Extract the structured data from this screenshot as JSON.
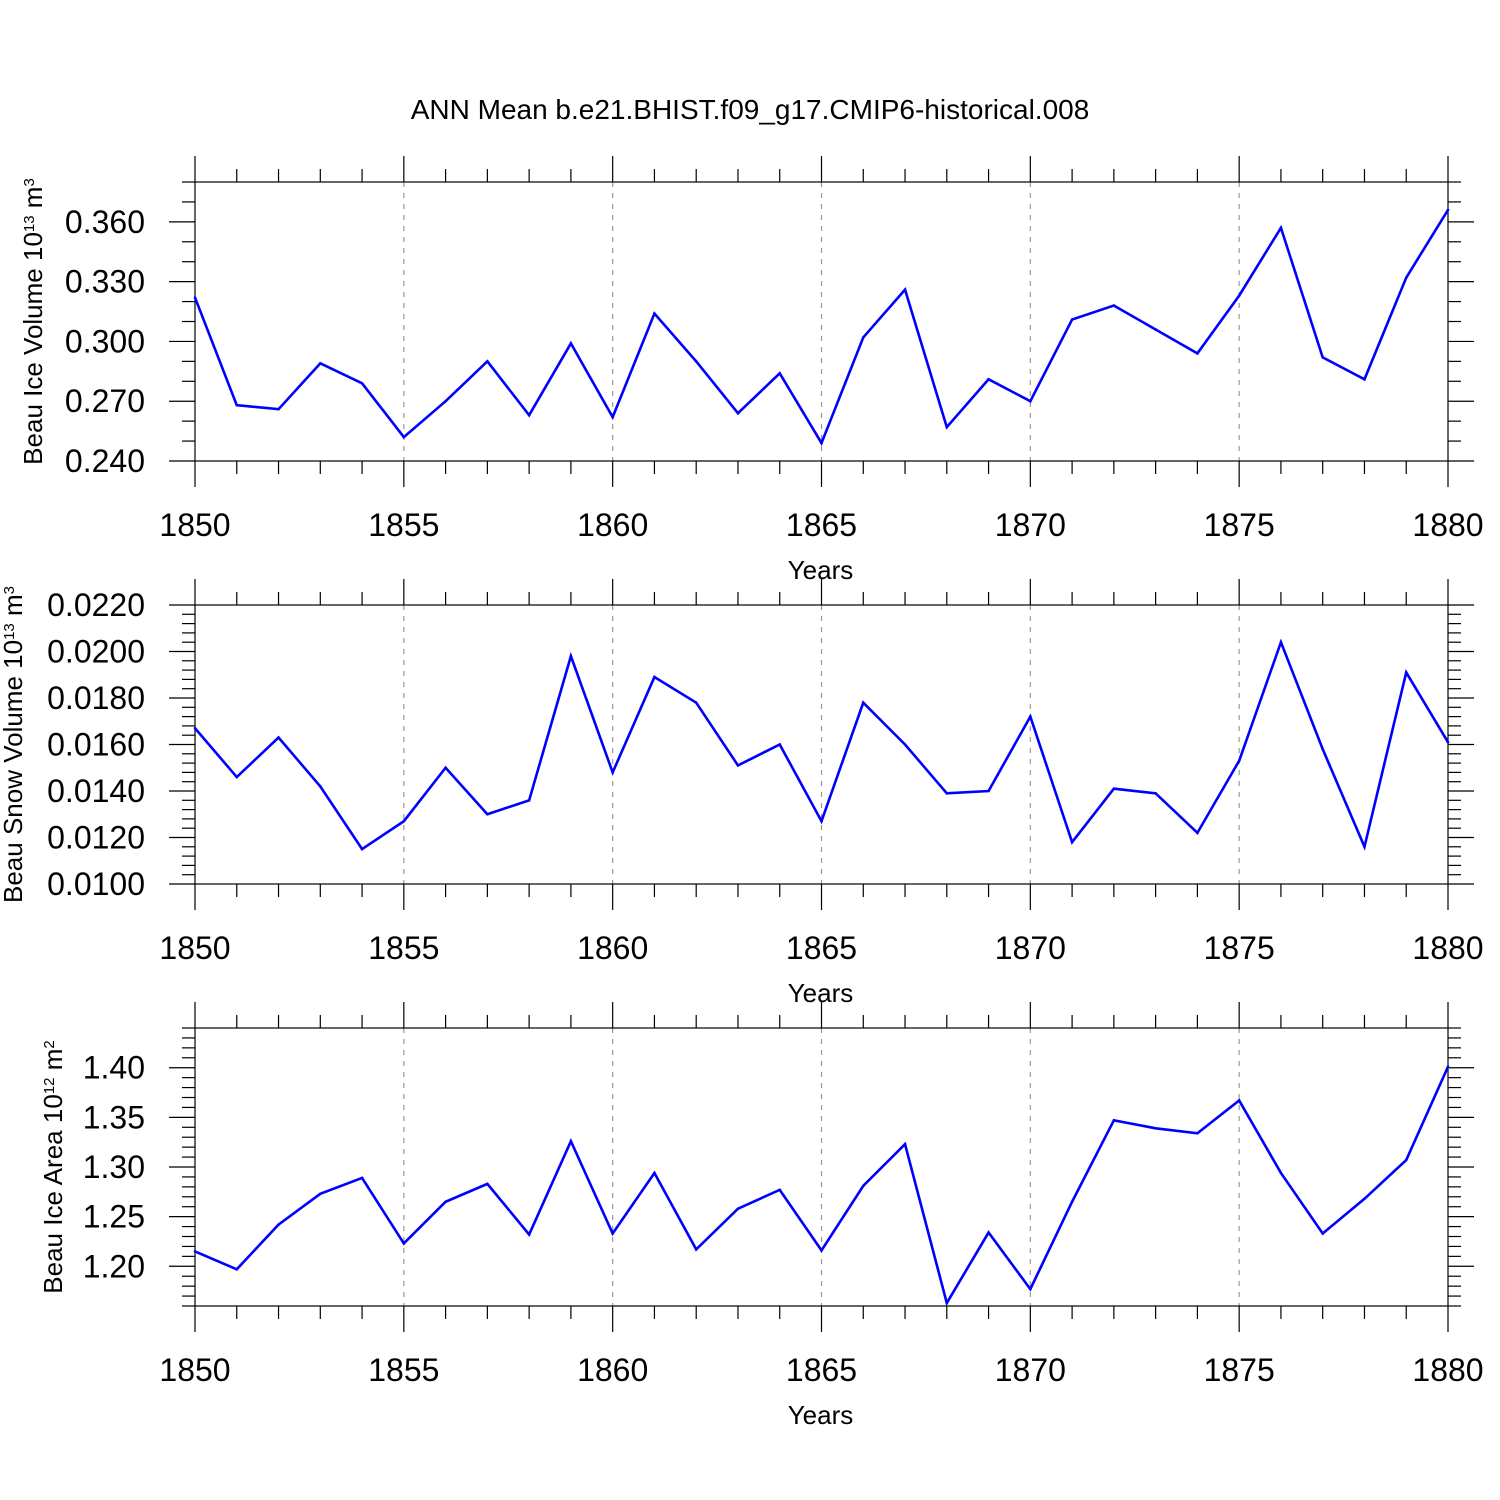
{
  "title": "ANN Mean b.e21.BHIST.f09_g17.CMIP6-historical.008",
  "colors": {
    "line": "#0000ff",
    "axis": "#000000",
    "grid": "#999999"
  },
  "chart_data": [
    {
      "type": "line",
      "title": "ANN Mean b.e21.BHIST.f09_g17.CMIP6-historical.008",
      "xlabel": "Years",
      "ylabel": {
        "prefix": "Beau Ice Volume 10",
        "exponent": "13",
        "unit": "m",
        "unit_exp": "3"
      },
      "xlim": [
        1850,
        1880
      ],
      "ylim": [
        0.24,
        0.38
      ],
      "xticks": [
        1850,
        1855,
        1860,
        1865,
        1870,
        1875,
        1880
      ],
      "yticks": [
        0.24,
        0.27,
        0.3,
        0.33,
        0.36
      ],
      "ytick_labels": [
        "0.240",
        "0.270",
        "0.300",
        "0.330",
        "0.360"
      ],
      "ytick_minor": 0.01,
      "grid": "vertical dashed at major x ticks",
      "series": [
        {
          "name": "Beau Ice Volume",
          "x": [
            1850,
            1851,
            1852,
            1853,
            1854,
            1855,
            1856,
            1857,
            1858,
            1859,
            1860,
            1861,
            1862,
            1863,
            1864,
            1865,
            1866,
            1867,
            1868,
            1869,
            1870,
            1871,
            1872,
            1873,
            1874,
            1875,
            1876,
            1877,
            1878,
            1879,
            1880
          ],
          "values": [
            0.322,
            0.268,
            0.266,
            0.289,
            0.279,
            0.252,
            0.27,
            0.29,
            0.263,
            0.299,
            0.262,
            0.314,
            0.29,
            0.264,
            0.284,
            0.249,
            0.302,
            0.326,
            0.257,
            0.281,
            0.27,
            0.311,
            0.318,
            0.306,
            0.294,
            0.323,
            0.357,
            0.292,
            0.281,
            0.332,
            0.366
          ]
        }
      ]
    },
    {
      "type": "line",
      "xlabel": "Years",
      "ylabel": {
        "prefix": "Beau Snow Volume 10",
        "exponent": "13",
        "unit": "m",
        "unit_exp": "3"
      },
      "xlim": [
        1850,
        1880
      ],
      "ylim": [
        0.01,
        0.022
      ],
      "xticks": [
        1850,
        1855,
        1860,
        1865,
        1870,
        1875,
        1880
      ],
      "yticks": [
        0.01,
        0.012,
        0.014,
        0.016,
        0.018,
        0.02,
        0.022
      ],
      "ytick_labels": [
        "0.0100",
        "0.0120",
        "0.0140",
        "0.0160",
        "0.0180",
        "0.0200",
        "0.0220"
      ],
      "ytick_minor": 0.0004,
      "grid": "vertical dashed at major x ticks",
      "series": [
        {
          "name": "Beau Snow Volume",
          "x": [
            1850,
            1851,
            1852,
            1853,
            1854,
            1855,
            1856,
            1857,
            1858,
            1859,
            1860,
            1861,
            1862,
            1863,
            1864,
            1865,
            1866,
            1867,
            1868,
            1869,
            1870,
            1871,
            1872,
            1873,
            1874,
            1875,
            1876,
            1877,
            1878,
            1879,
            1880
          ],
          "values": [
            0.0167,
            0.0146,
            0.0163,
            0.0142,
            0.0115,
            0.0127,
            0.015,
            0.013,
            0.0136,
            0.0198,
            0.0148,
            0.0189,
            0.0178,
            0.0151,
            0.016,
            0.0127,
            0.0178,
            0.016,
            0.0139,
            0.014,
            0.0172,
            0.0118,
            0.0141,
            0.0139,
            0.0122,
            0.0153,
            0.0204,
            0.0158,
            0.0116,
            0.0191,
            0.0161
          ]
        }
      ]
    },
    {
      "type": "line",
      "xlabel": "Years",
      "ylabel": {
        "prefix": "Beau Ice Area 10",
        "exponent": "12",
        "unit": "m",
        "unit_exp": "2"
      },
      "xlim": [
        1850,
        1880
      ],
      "ylim": [
        1.16,
        1.44
      ],
      "xticks": [
        1850,
        1855,
        1860,
        1865,
        1870,
        1875,
        1880
      ],
      "yticks": [
        1.2,
        1.25,
        1.3,
        1.35,
        1.4
      ],
      "ytick_labels": [
        "1.20",
        "1.25",
        "1.30",
        "1.35",
        "1.40"
      ],
      "ytick_minor": 0.01,
      "grid": "vertical dashed at major x ticks",
      "series": [
        {
          "name": "Beau Ice Area",
          "x": [
            1850,
            1851,
            1852,
            1853,
            1854,
            1855,
            1856,
            1857,
            1858,
            1859,
            1860,
            1861,
            1862,
            1863,
            1864,
            1865,
            1866,
            1867,
            1868,
            1869,
            1870,
            1871,
            1872,
            1873,
            1874,
            1875,
            1876,
            1877,
            1878,
            1879,
            1880
          ],
          "values": [
            1.215,
            1.197,
            1.242,
            1.273,
            1.289,
            1.223,
            1.265,
            1.283,
            1.232,
            1.326,
            1.233,
            1.294,
            1.217,
            1.258,
            1.277,
            1.216,
            1.281,
            1.323,
            1.163,
            1.234,
            1.177,
            1.265,
            1.347,
            1.339,
            1.334,
            1.367,
            1.294,
            1.233,
            1.268,
            1.307,
            1.401
          ]
        }
      ]
    }
  ]
}
